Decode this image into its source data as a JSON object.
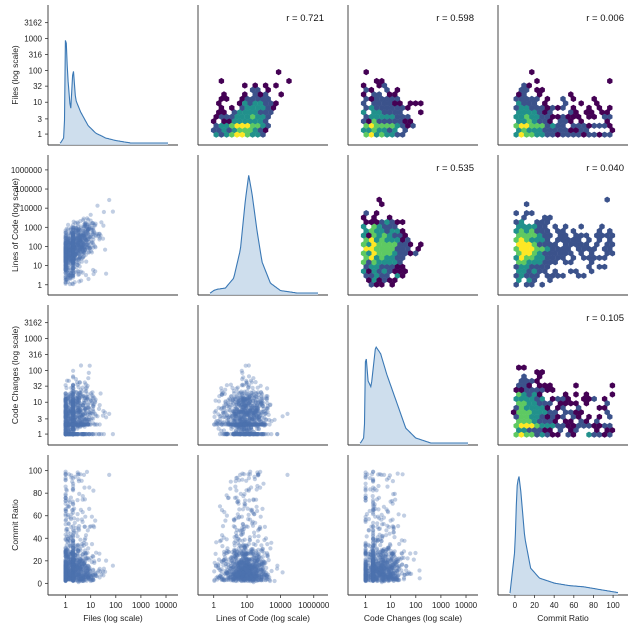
{
  "chart_data": {
    "type": "pairplot",
    "variables": [
      {
        "key": "files",
        "label": "Files (log scale)",
        "scale": "log",
        "xticks": [
          "1",
          "10",
          "100",
          "1000",
          "10000"
        ],
        "yticks": [
          "1",
          "3",
          "10",
          "32",
          "100",
          "316",
          "1000",
          "3162"
        ]
      },
      {
        "key": "loc",
        "label": "Lines of Code (log scale)",
        "scale": "log",
        "xticks": [
          "1",
          "100",
          "10000",
          "1000000"
        ],
        "yticks": [
          "1",
          "10",
          "100",
          "1000",
          "10000",
          "100000",
          "1000000"
        ]
      },
      {
        "key": "changes",
        "label": "Code Changes (log scale)",
        "scale": "log",
        "xticks": [
          "1",
          "10",
          "100",
          "1000",
          "10000"
        ],
        "yticks": [
          "1",
          "3",
          "10",
          "32",
          "100",
          "316",
          "1000",
          "3162"
        ]
      },
      {
        "key": "ratio",
        "label": "Commit Ratio",
        "scale": "linear",
        "xticks": [
          "0",
          "20",
          "40",
          "60",
          "80",
          "100"
        ],
        "yticks": [
          "0",
          "20",
          "40",
          "60",
          "80",
          "100"
        ]
      }
    ],
    "diagonal": "kde",
    "lower": "scatter",
    "upper": "hexbin",
    "correlations": [
      {
        "row": 0,
        "col": 1,
        "label": "r = 0.721"
      },
      {
        "row": 0,
        "col": 2,
        "label": "r = 0.598"
      },
      {
        "row": 0,
        "col": 3,
        "label": "r = 0.006"
      },
      {
        "row": 1,
        "col": 2,
        "label": "r = 0.535"
      },
      {
        "row": 1,
        "col": 3,
        "label": "r = 0.040"
      },
      {
        "row": 2,
        "col": 3,
        "label": "r = 0.105"
      }
    ],
    "colors": {
      "scatter": "#4c72b0",
      "kde_line": "#3a78b5",
      "kde_fill": "#c6d8ea",
      "hex_low": "#440154",
      "hex_mid": "#21918c",
      "hex_high": "#fde725"
    }
  }
}
